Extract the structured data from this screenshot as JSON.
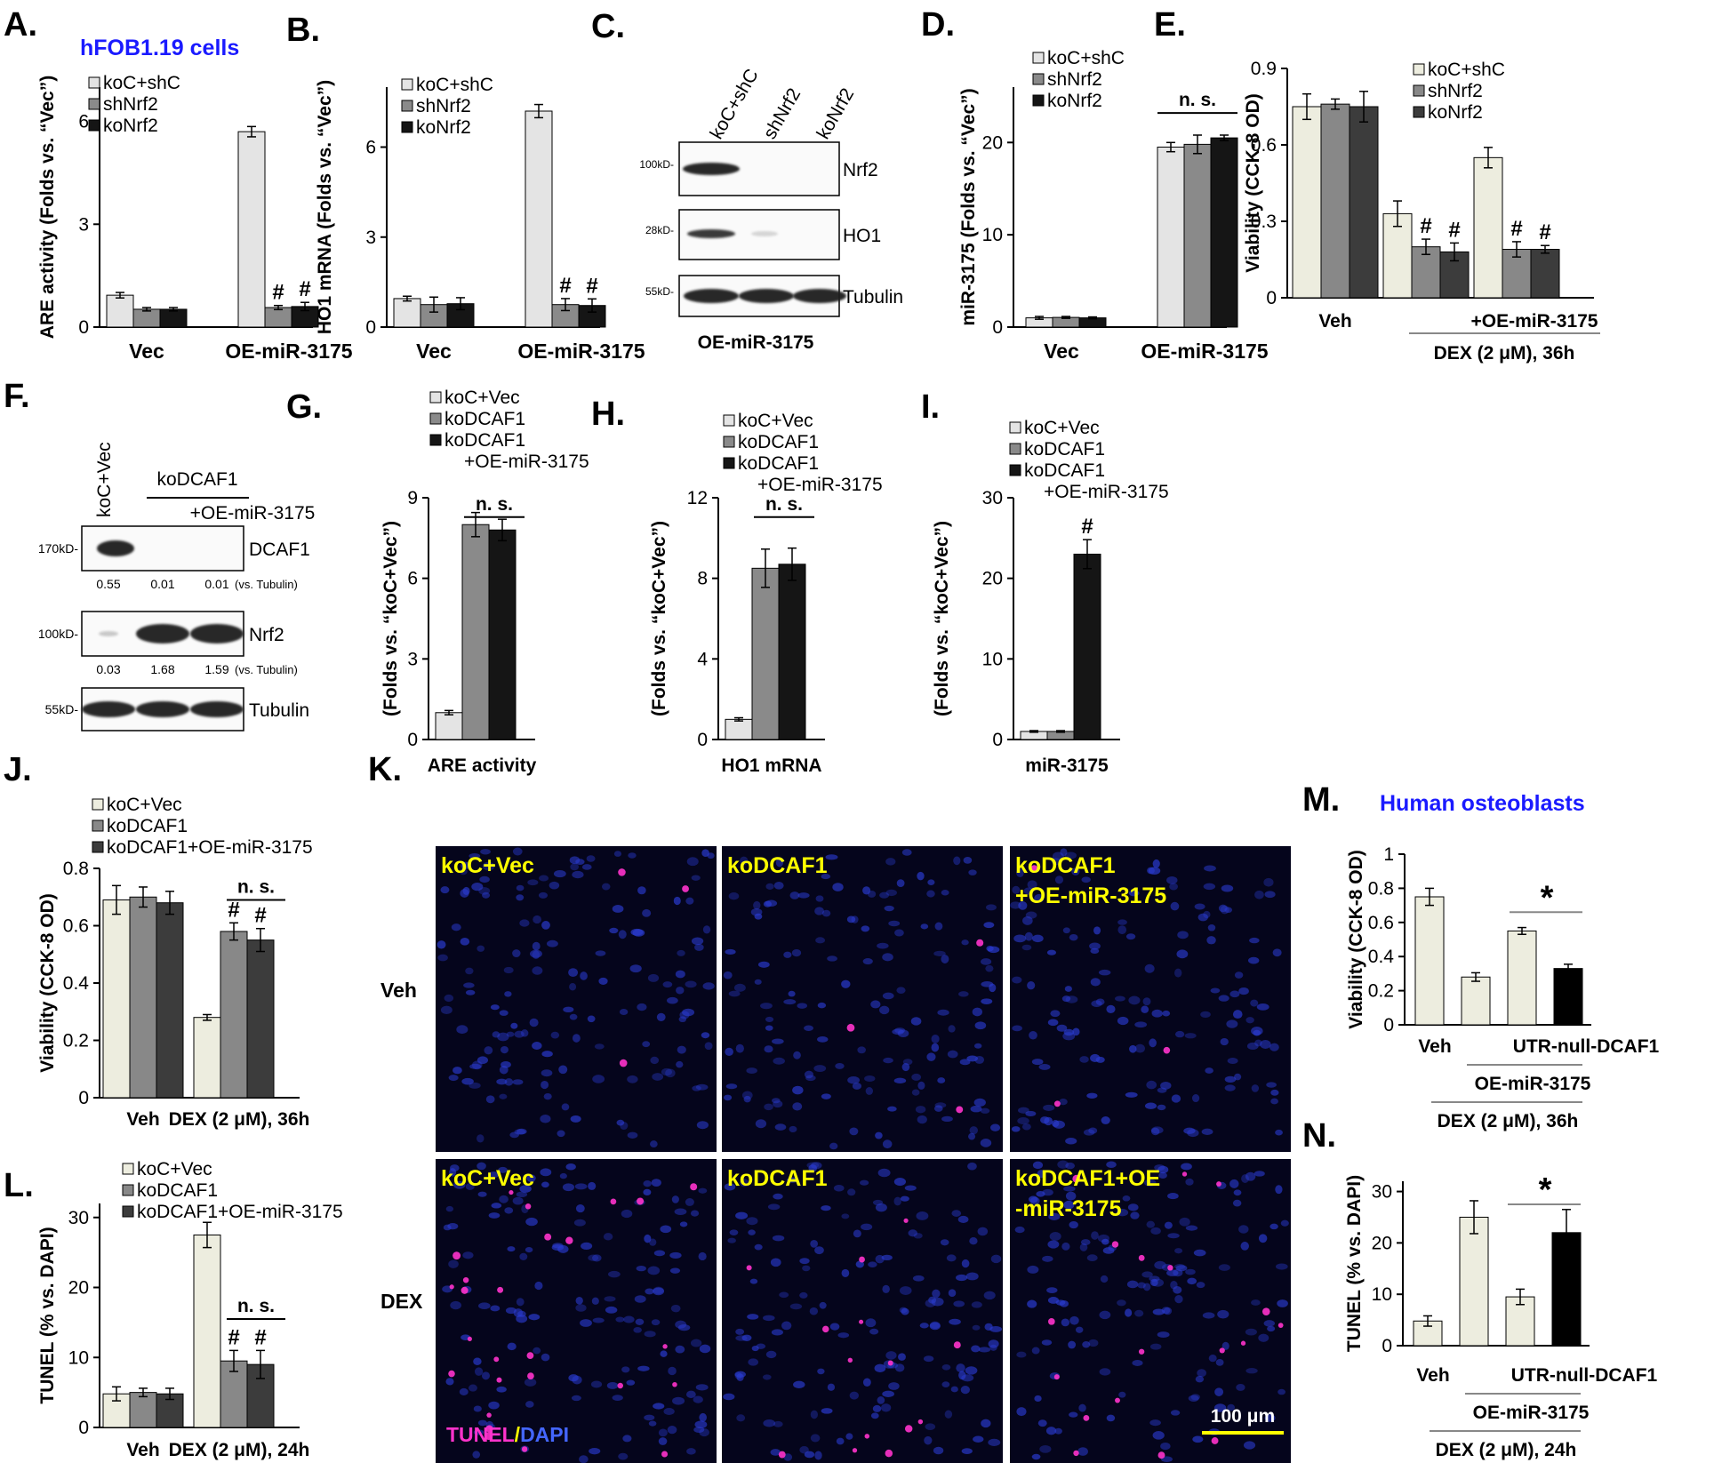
{
  "colors": {
    "c_light": "#e4e4e4",
    "c_mid": "#8a8a8a",
    "c_dark": "#151515",
    "c_cream": "#ededdf",
    "c_grey": "#888888",
    "c_charcoal": "#3c3c3c",
    "c_black": "#000000",
    "title_blue": "#1a1aff",
    "micro_label_yellow": "#ffff00",
    "micro_bg": "#05051c",
    "tunel": "#ff33cc",
    "dapi": "#4466ff"
  },
  "figure": {
    "title_hfob": "hFOB1.19 cells",
    "title_human": "Human osteoblasts"
  },
  "panel_letters": {
    "A": "A.",
    "B": "B.",
    "C": "C.",
    "D": "D.",
    "E": "E.",
    "F": "F.",
    "G": "G.",
    "H": "H.",
    "I": "I.",
    "J": "J.",
    "K": "K.",
    "L": "L.",
    "M": "M.",
    "N": "N."
  },
  "chart_data": [
    {
      "id": "A",
      "type": "bar",
      "ylabel": "ARE activity (Folds vs. “Vec”)",
      "yticks": [
        0,
        3,
        6
      ],
      "ylim": [
        0,
        7
      ],
      "legend": [
        "koC+shC",
        "shNrf2",
        "koNrf2"
      ],
      "groups": [
        {
          "label": "Vec",
          "values": [
            0.93,
            0.52,
            0.52
          ],
          "err": [
            0.08,
            0.05,
            0.05
          ],
          "marks": [
            "",
            "",
            ""
          ]
        },
        {
          "label": "OE-miR-3175",
          "values": [
            5.7,
            0.57,
            0.6
          ],
          "err": [
            0.15,
            0.06,
            0.12
          ],
          "marks": [
            "",
            "#",
            "#"
          ]
        }
      ]
    },
    {
      "id": "B",
      "type": "bar",
      "ylabel": "HO1 mRNA (Folds vs. “Vec”)",
      "yticks": [
        0,
        3,
        6
      ],
      "ylim": [
        0,
        8
      ],
      "legend": [
        "koC+shC",
        "shNrf2",
        "koNrf2"
      ],
      "groups": [
        {
          "label": "Vec",
          "values": [
            0.95,
            0.75,
            0.78
          ],
          "err": [
            0.08,
            0.25,
            0.2
          ],
          "marks": [
            "",
            "",
            ""
          ]
        },
        {
          "label": "OE-miR-3175",
          "values": [
            7.2,
            0.75,
            0.72
          ],
          "err": [
            0.22,
            0.2,
            0.22
          ],
          "marks": [
            "",
            "#",
            "#"
          ]
        }
      ]
    },
    {
      "id": "D",
      "type": "bar",
      "ylabel": "miR-3175 (Folds vs. “Vec”)",
      "yticks": [
        0,
        10,
        20
      ],
      "ylim": [
        0,
        26
      ],
      "legend": [
        "koC+shC",
        "shNrf2",
        "koNrf2"
      ],
      "groups": [
        {
          "label": "Vec",
          "values": [
            1.0,
            1.05,
            1.0
          ],
          "err": [
            0.15,
            0.1,
            0.1
          ],
          "marks": [
            "",
            "",
            ""
          ]
        },
        {
          "label": "OE-miR-3175",
          "values": [
            19.5,
            19.8,
            20.5
          ],
          "err": [
            0.5,
            1.0,
            0.3
          ],
          "marks": [
            "",
            "",
            ""
          ]
        }
      ],
      "ns_label": "n. s."
    },
    {
      "id": "E",
      "type": "bar",
      "ylabel": "Viability (CCK-8 OD)",
      "yticks": [
        0,
        0.3,
        0.6,
        0.9
      ],
      "ytick_labels": [
        "0",
        "0.3",
        "0.6",
        "0.9"
      ],
      "ylim": [
        0,
        0.9
      ],
      "legend": [
        "koC+shC",
        "shNrf2",
        "koNrf2"
      ],
      "groups": [
        {
          "label": "Veh",
          "values": [
            0.75,
            0.76,
            0.75
          ],
          "err": [
            0.05,
            0.02,
            0.06
          ],
          "marks": [
            "",
            "",
            ""
          ]
        },
        {
          "label": "",
          "values": [
            0.33,
            0.2,
            0.18
          ],
          "err": [
            0.05,
            0.03,
            0.035
          ],
          "marks": [
            "",
            "#",
            "#"
          ]
        },
        {
          "label": "+OE-miR-3175",
          "values": [
            0.55,
            0.19,
            0.19
          ],
          "err": [
            0.04,
            0.03,
            0.015
          ],
          "marks": [
            "",
            "#",
            "#"
          ]
        }
      ],
      "bottom_label": "DEX (2 μM), 36h"
    },
    {
      "id": "G",
      "type": "bar",
      "ylabel": "(Folds vs. “koC+Vec”)",
      "xlabel": "ARE activity",
      "yticks": [
        0,
        3,
        6,
        9
      ],
      "ylim": [
        0,
        9
      ],
      "legend": [
        "koC+Vec",
        "koDCAF1",
        "koDCAF1",
        "+OE-miR-3175"
      ],
      "groups": [
        {
          "label": "",
          "values": [
            1.0,
            8.0,
            7.8
          ],
          "err": [
            0.08,
            0.45,
            0.4
          ],
          "marks": [
            "",
            "",
            ""
          ]
        }
      ],
      "ns_label": "n. s."
    },
    {
      "id": "H",
      "type": "bar",
      "ylabel": "(Folds vs. “koC+Vec”)",
      "xlabel": "HO1 mRNA",
      "yticks": [
        0,
        4,
        8,
        12
      ],
      "ylim": [
        0,
        12
      ],
      "legend": [
        "koC+Vec",
        "koDCAF1",
        "koDCAF1",
        "+OE-miR-3175"
      ],
      "groups": [
        {
          "label": "",
          "values": [
            1.0,
            8.5,
            8.7
          ],
          "err": [
            0.08,
            0.95,
            0.8
          ],
          "marks": [
            "",
            "",
            ""
          ]
        }
      ],
      "ns_label": "n. s."
    },
    {
      "id": "I",
      "type": "bar",
      "ylabel": "(Folds vs. “koC+Vec”)",
      "xlabel": "miR-3175",
      "yticks": [
        0,
        10,
        20,
        30
      ],
      "ylim": [
        0,
        30
      ],
      "legend": [
        "koC+Vec",
        "koDCAF1",
        "koDCAF1",
        "+OE-miR-3175"
      ],
      "groups": [
        {
          "label": "",
          "values": [
            1.0,
            1.0,
            23.0
          ],
          "err": [
            0.1,
            0.1,
            1.8
          ],
          "marks": [
            "",
            "",
            "#"
          ]
        }
      ]
    },
    {
      "id": "J",
      "type": "bar",
      "ylabel": "Viability (CCK-8 OD)",
      "yticks": [
        0,
        0.2,
        0.4,
        0.6,
        0.8
      ],
      "ytick_labels": [
        "0",
        "0.2",
        "0.4",
        "0.6",
        "0.8"
      ],
      "ylim": [
        0,
        0.8
      ],
      "legend": [
        "koC+Vec",
        "koDCAF1",
        "koDCAF1+OE-miR-3175"
      ],
      "groups": [
        {
          "label": "Veh",
          "values": [
            0.69,
            0.7,
            0.68
          ],
          "err": [
            0.05,
            0.035,
            0.04
          ],
          "marks": [
            "",
            "",
            ""
          ]
        },
        {
          "label": "DEX (2 μM), 36h",
          "values": [
            0.28,
            0.58,
            0.55
          ],
          "err": [
            0.01,
            0.03,
            0.04
          ],
          "marks": [
            "",
            "#",
            "#"
          ]
        }
      ],
      "ns_label": "n. s."
    },
    {
      "id": "L",
      "type": "bar",
      "ylabel": "TUNEL (% vs. DAPI)",
      "yticks": [
        0,
        10,
        20,
        30
      ],
      "ylim": [
        0,
        32
      ],
      "legend": [
        "koC+Vec",
        "koDCAF1",
        "koDCAF1+OE-miR-3175"
      ],
      "groups": [
        {
          "label": "Veh",
          "values": [
            4.8,
            5.0,
            4.8
          ],
          "err": [
            1.0,
            0.6,
            0.8
          ],
          "marks": [
            "",
            "",
            ""
          ]
        },
        {
          "label": "DEX (2 μM), 24h",
          "values": [
            27.5,
            9.5,
            9.0
          ],
          "err": [
            1.8,
            1.5,
            2.0
          ],
          "marks": [
            "",
            "#",
            "#"
          ]
        }
      ],
      "ns_label": "n. s."
    },
    {
      "id": "M",
      "type": "bar",
      "ylabel": "Viability (CCK-8 OD)",
      "yticks": [
        0,
        0.2,
        0.4,
        0.6,
        0.8,
        1
      ],
      "ytick_labels": [
        "0",
        "0.2",
        "0.4",
        "0.6",
        "0.8",
        "1"
      ],
      "ylim": [
        0,
        1
      ],
      "bars": [
        0.75,
        0.28,
        0.55,
        0.33
      ],
      "err": [
        0.05,
        0.025,
        0.02,
        0.025
      ],
      "x_labels": [
        "Veh",
        "UTR-null-DCAF1",
        "OE-miR-3175",
        "DEX (2 μM), 36h"
      ],
      "star": "*"
    },
    {
      "id": "N",
      "type": "bar",
      "ylabel": "TUNEL (% vs. DAPI)",
      "yticks": [
        0,
        10,
        20,
        30
      ],
      "ylim": [
        0,
        32
      ],
      "bars": [
        4.8,
        25.0,
        9.5,
        22.0
      ],
      "err": [
        1.0,
        3.2,
        1.5,
        4.5
      ],
      "x_labels": [
        "Veh",
        "UTR-null-DCAF1",
        "OE-miR-3175",
        "DEX (2 μM), 24h"
      ],
      "star": "*"
    }
  ],
  "blots": {
    "C": {
      "lanes": [
        "koC+shC",
        "shNrf2",
        "koNrf2"
      ],
      "rows": [
        {
          "marker": "100kD-",
          "protein": "Nrf2"
        },
        {
          "marker": "28kD-",
          "protein": "HO1"
        },
        {
          "marker": "55kD-",
          "protein": "Tubulin"
        }
      ],
      "bottom_label": "OE-miR-3175"
    },
    "F": {
      "lane1": "koC+Vec",
      "group_label": "koDCAF1",
      "sub_label": "+OE-miR-3175",
      "rows": [
        {
          "marker": "170kD-",
          "protein": "DCAF1",
          "quant": [
            "0.55",
            "0.01",
            "0.01"
          ],
          "quant_suffix": "(vs. Tubulin)"
        },
        {
          "marker": "100kD-",
          "protein": "Nrf2",
          "quant": [
            "0.03",
            "1.68",
            "1.59"
          ],
          "quant_suffix": "(vs. Tubulin)"
        },
        {
          "marker": "55kD-",
          "protein": "Tubulin"
        }
      ]
    }
  },
  "micrographs": {
    "row_labels": [
      "Veh",
      "DEX"
    ],
    "col_labels_veh": [
      "koC+Vec",
      "koDCAF1",
      "koDCAF1",
      "+OE-miR-3175"
    ],
    "col_labels_dex": [
      "koC+Vec",
      "koDCAF1",
      "koDCAF1+OE",
      "-miR-3175"
    ],
    "stain_tunel": "TUNEL",
    "stain_sep": "/",
    "stain_dapi": "DAPI",
    "scale_bar": "100 μm"
  }
}
